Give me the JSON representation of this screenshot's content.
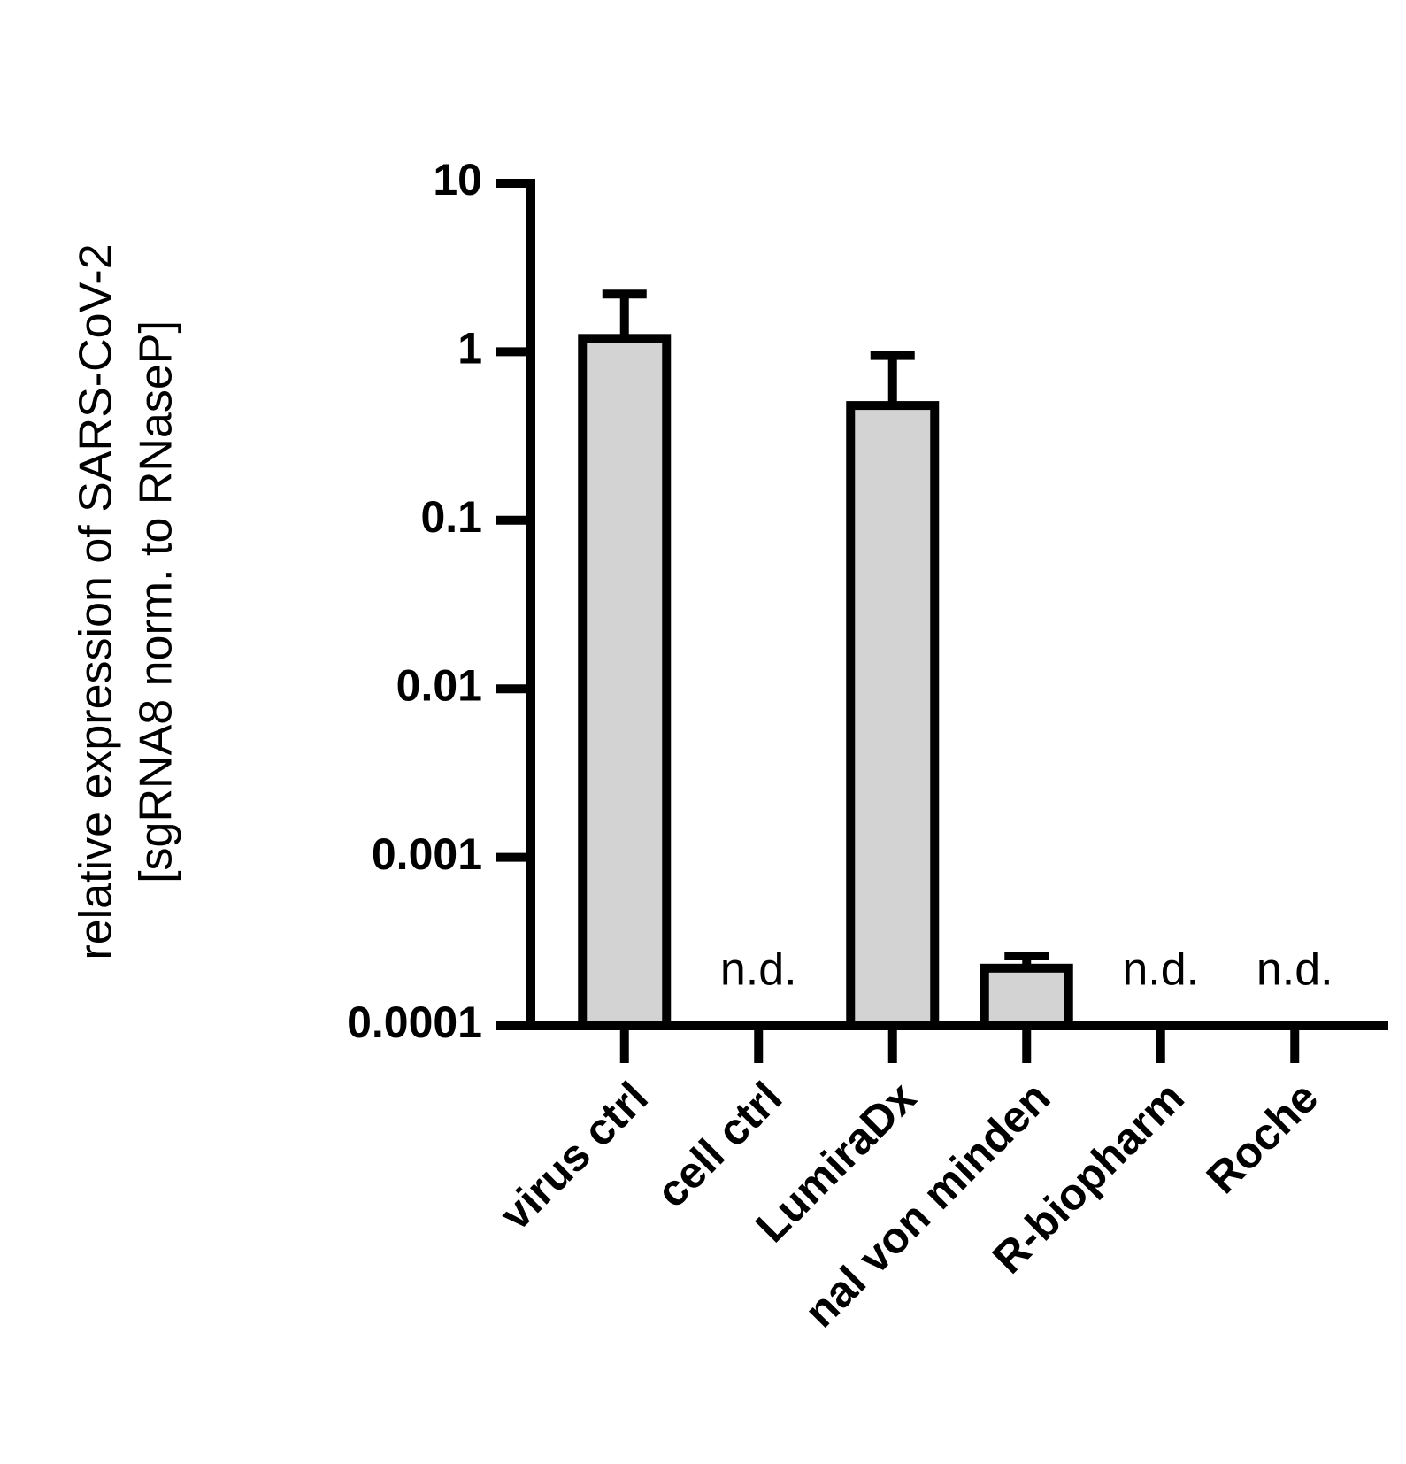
{
  "chart_data": {
    "type": "bar",
    "ylabel": [
      "relative expression of SARS-CoV-2",
      "[sgRNA8 norm. to RNaseP]"
    ],
    "categories": [
      "virus ctrl",
      "cell ctrl",
      "LumiraDx",
      "nal von minden",
      "R-biopharm",
      "Roche"
    ],
    "values": [
      1.2,
      null,
      0.48,
      0.00022,
      null,
      null
    ],
    "errors": [
      1.0,
      null,
      0.47,
      4e-05,
      null,
      null
    ],
    "value_labels": [
      null,
      "n.d.",
      null,
      null,
      "n.d.",
      "n.d."
    ],
    "color": "#d3d3d3",
    "ylim": [
      0.0001,
      10
    ],
    "yticks": [
      0.0001,
      0.001,
      0.01,
      0.1,
      1,
      10
    ],
    "log_y": true,
    "grid": false
  }
}
